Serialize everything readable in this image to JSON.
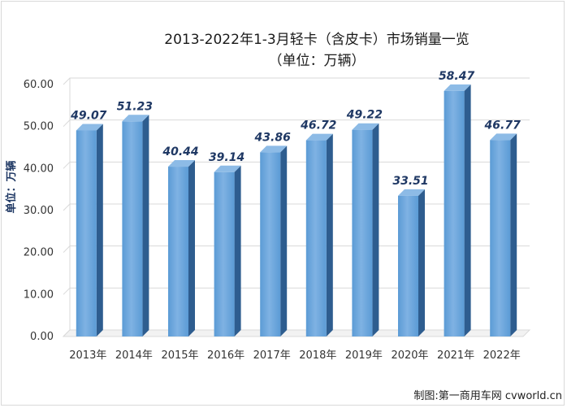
{
  "title_line1": "2013-2022年1-3月轻卡（含皮卡）市场销量一览",
  "title_line2": "（单位：万辆）",
  "source_credit": "制图:第一商用车网 cvworld.cn",
  "chart_data": {
    "type": "bar",
    "categories": [
      "2013年",
      "2014年",
      "2015年",
      "2016年",
      "2017年",
      "2018年",
      "2019年",
      "2020年",
      "2021年",
      "2022年"
    ],
    "values": [
      49.07,
      51.23,
      40.44,
      39.14,
      43.86,
      46.72,
      49.22,
      33.51,
      58.47,
      46.77
    ],
    "data_labels": [
      "49.07",
      "51.23",
      "40.44",
      "39.14",
      "43.86",
      "46.72",
      "49.22",
      "33.51",
      "58.47",
      "46.77"
    ],
    "ylabel": "单位：万辆",
    "ylim": [
      0,
      60
    ],
    "yticks": [
      "0.00",
      "10.00",
      "20.00",
      "30.00",
      "40.00",
      "50.00",
      "60.00"
    ],
    "grid": true,
    "legend": "none",
    "colors": {
      "bar_front": "#5b9bd5",
      "bar_front_light": "#7fb2e3",
      "bar_side": "#2e5d8f",
      "bar_top": "#8dbbe6",
      "label": "#1f3864",
      "grid": "#d9d9d9"
    }
  }
}
